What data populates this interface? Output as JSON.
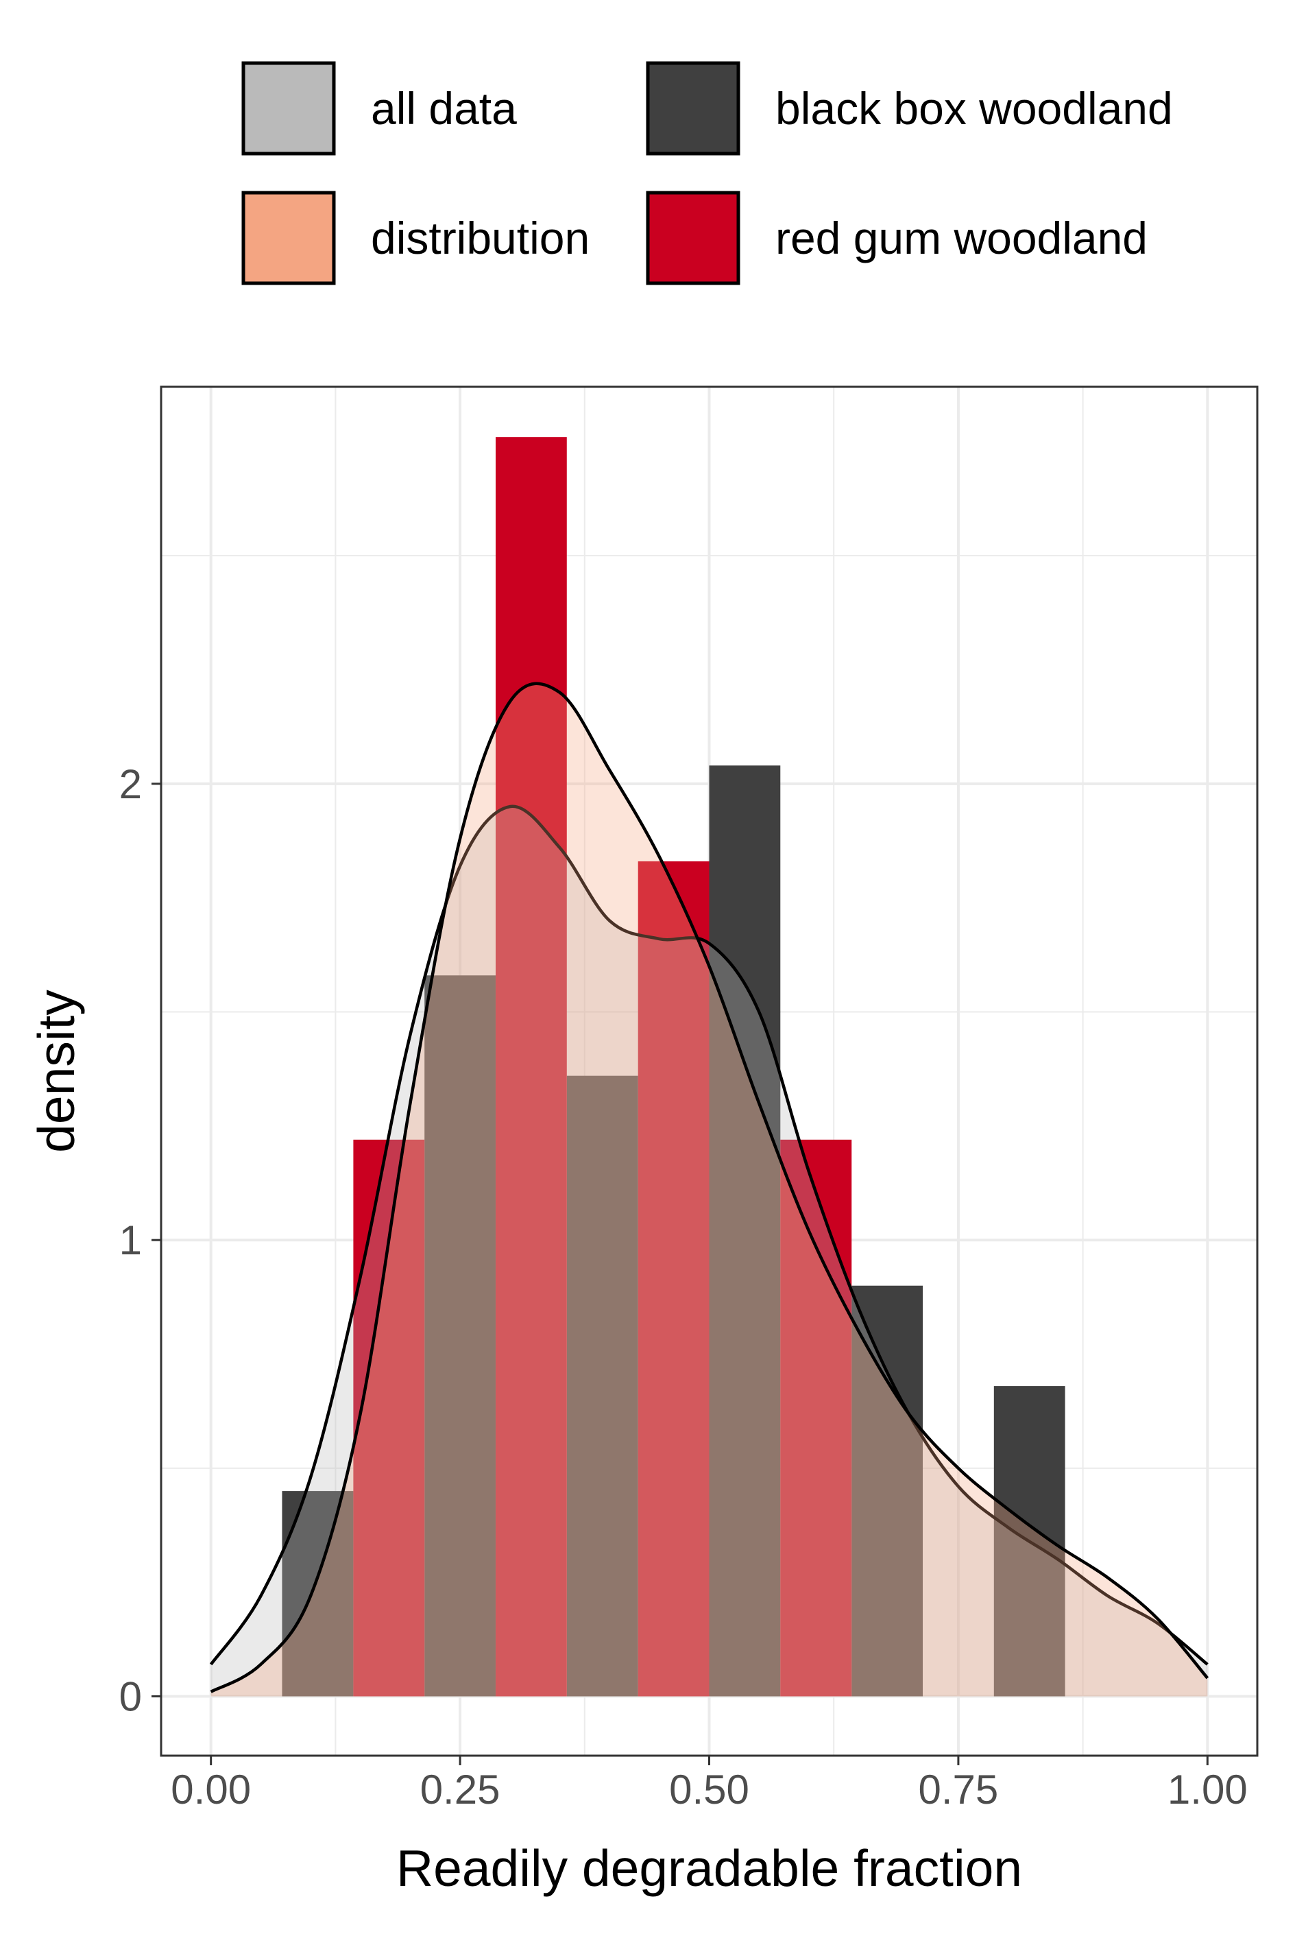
{
  "chart_data": {
    "type": "histogram-density",
    "xlabel": "Readily degradable fraction",
    "ylabel": "density",
    "xlim": [
      -0.05,
      1.05
    ],
    "ylim": [
      -0.13,
      2.87
    ],
    "x_ticks": [
      0.0,
      0.25,
      0.5,
      0.75,
      1.0
    ],
    "x_tick_labels": [
      "0.00",
      "0.25",
      "0.50",
      "0.75",
      "1.00"
    ],
    "y_ticks": [
      0,
      1,
      2
    ],
    "y_tick_labels": [
      "0",
      "1",
      "2"
    ],
    "grid": true,
    "legend_position": "top",
    "legend": [
      {
        "label": "all data",
        "color": "#bababa"
      },
      {
        "label": "black box woodland",
        "color": "#404040"
      },
      {
        "label": "distribution",
        "color": "#f4a582"
      },
      {
        "label": "red gum woodland",
        "color": "#ca0020"
      }
    ],
    "histograms": [
      {
        "name": "black box woodland",
        "color": "#404040",
        "bins": [
          {
            "x0": 0.0714,
            "x1": 0.1429,
            "density": 0.45
          },
          {
            "x0": 0.2143,
            "x1": 0.2857,
            "density": 1.58
          },
          {
            "x0": 0.3571,
            "x1": 0.4286,
            "density": 1.36
          },
          {
            "x0": 0.5,
            "x1": 0.5714,
            "density": 2.04
          },
          {
            "x0": 0.6429,
            "x1": 0.7143,
            "density": 0.9
          },
          {
            "x0": 0.7857,
            "x1": 0.8571,
            "density": 0.68
          }
        ]
      },
      {
        "name": "red gum woodland",
        "color": "#ca0020",
        "bins": [
          {
            "x0": 0.1429,
            "x1": 0.2143,
            "density": 1.22
          },
          {
            "x0": 0.2857,
            "x1": 0.3571,
            "density": 2.76
          },
          {
            "x0": 0.4286,
            "x1": 0.5,
            "density": 1.83
          },
          {
            "x0": 0.5714,
            "x1": 0.6429,
            "density": 1.22
          }
        ]
      }
    ],
    "density_curves": [
      {
        "name": "all data",
        "fill": "#bababa",
        "x": [
          0.0,
          0.05,
          0.1,
          0.15,
          0.2,
          0.25,
          0.3,
          0.35,
          0.4,
          0.45,
          0.5,
          0.55,
          0.6,
          0.65,
          0.7,
          0.75,
          0.8,
          0.85,
          0.9,
          0.95,
          1.0
        ],
        "y": [
          0.07,
          0.22,
          0.48,
          0.92,
          1.45,
          1.82,
          1.95,
          1.86,
          1.7,
          1.66,
          1.65,
          1.5,
          1.15,
          0.85,
          0.62,
          0.46,
          0.37,
          0.3,
          0.22,
          0.16,
          0.07
        ]
      },
      {
        "name": "distribution",
        "fill": "#f4a582",
        "x": [
          0.0,
          0.05,
          0.1,
          0.15,
          0.2,
          0.25,
          0.3,
          0.35,
          0.4,
          0.45,
          0.5,
          0.55,
          0.6,
          0.65,
          0.7,
          0.75,
          0.8,
          0.85,
          0.9,
          0.95,
          1.0
        ],
        "y": [
          0.01,
          0.07,
          0.22,
          0.62,
          1.3,
          1.88,
          2.18,
          2.2,
          2.03,
          1.84,
          1.6,
          1.3,
          1.02,
          0.8,
          0.62,
          0.5,
          0.41,
          0.33,
          0.26,
          0.17,
          0.04
        ]
      }
    ]
  }
}
